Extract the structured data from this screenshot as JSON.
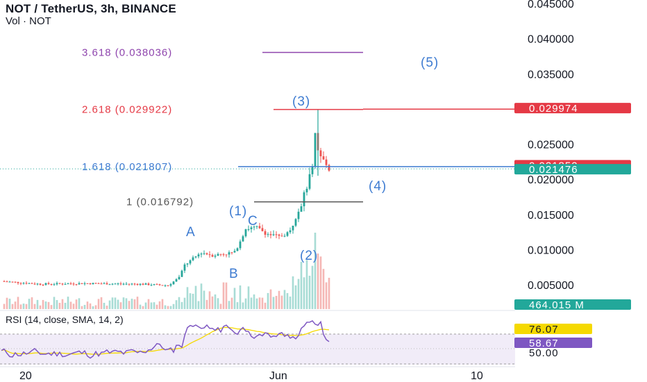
{
  "header": {
    "title": "NOT / TetherUS, 3h, BINANCE",
    "volume_label": "Vol · NOT"
  },
  "rsi_label": "RSI (14, close, SMA, 14, 2)",
  "colors": {
    "up": "#26a69a",
    "down": "#ef5350",
    "rsi_line": "#7e57c2",
    "rsi_ma": "#f5d900",
    "fib_3618": "#8e44ad",
    "fib_2618": "#e53945",
    "fib_1618": "#3d7bd1",
    "fib_1": "#555555",
    "wave_label": "#3d7bd1",
    "price_red_badge": "#e53945",
    "price_green_badge": "#22a89a"
  },
  "chart_data": {
    "type": "candlestick",
    "price_axis": {
      "ticks": [
        "0.045000",
        "0.040000",
        "0.035000",
        "0.025000",
        "0.020000",
        "0.015000",
        "0.010000",
        "0.005000"
      ],
      "range": [
        0.0,
        0.046
      ]
    },
    "time_axis": {
      "ticks": [
        "20",
        "Jun",
        "10"
      ]
    },
    "price_badges": [
      {
        "label": "0.029974",
        "value": 0.029974,
        "color": "red"
      },
      {
        "label": "0.021852",
        "value": 0.021852,
        "color": "red"
      },
      {
        "label": "0.021476",
        "value": 0.021476,
        "color": "green"
      }
    ],
    "volume_badge": "464.015 M",
    "fib_levels": [
      {
        "label": "3.618 (0.038036)",
        "value": 0.038036,
        "color": "#8e44ad"
      },
      {
        "label": "2.618 (0.029922)",
        "value": 0.029922,
        "color": "#e53945"
      },
      {
        "label": "1.618 (0.021807)",
        "value": 0.021807,
        "color": "#3d7bd1"
      },
      {
        "label": "1 (0.016792)",
        "value": 0.016792,
        "color": "#555555"
      }
    ],
    "wave_labels": [
      "(1)",
      "(2)",
      "(3)",
      "(4)",
      "(5)",
      "A",
      "B",
      "C"
    ],
    "rsi": {
      "value_label": "58.67",
      "ma_label": "76.07",
      "level_label": "50.00",
      "upper_band": 70,
      "lower_band": 30
    }
  }
}
